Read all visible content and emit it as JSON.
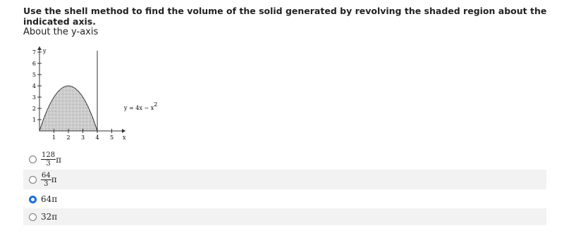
{
  "question": "Use the shell method to find the volume of the solid generated by revolving the shaded region about the indicated axis.",
  "axis_prompt": "About the y-axis",
  "graph": {
    "y_label": "y",
    "x_label": "x",
    "xticks": [
      1,
      2,
      3,
      4,
      5
    ],
    "yticks": [
      1,
      2,
      3,
      4,
      5,
      6,
      7
    ],
    "equation": {
      "text": "y = 4x − x",
      "exponent": "2"
    }
  },
  "options": [
    {
      "numerator": "128",
      "denominator": "3",
      "suffix": "π"
    },
    {
      "numerator": "64",
      "denominator": "3",
      "suffix": "π"
    },
    {
      "text": "64π"
    },
    {
      "text": "32π"
    }
  ],
  "selected": 2
}
